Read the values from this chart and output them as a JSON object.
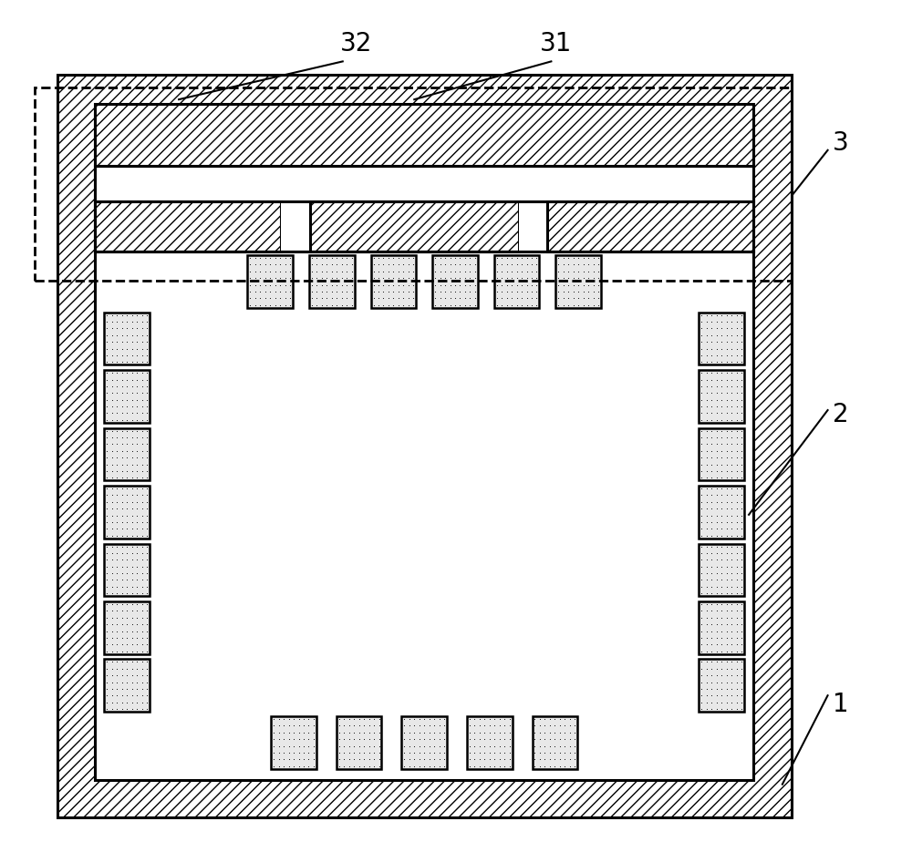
{
  "bg_color": "#ffffff",
  "line_color": "#000000",
  "label_1": "1",
  "label_2": "2",
  "label_3": "3",
  "label_31": "31",
  "label_32": "32",
  "font_size_labels": 20,
  "lw": 2.2
}
